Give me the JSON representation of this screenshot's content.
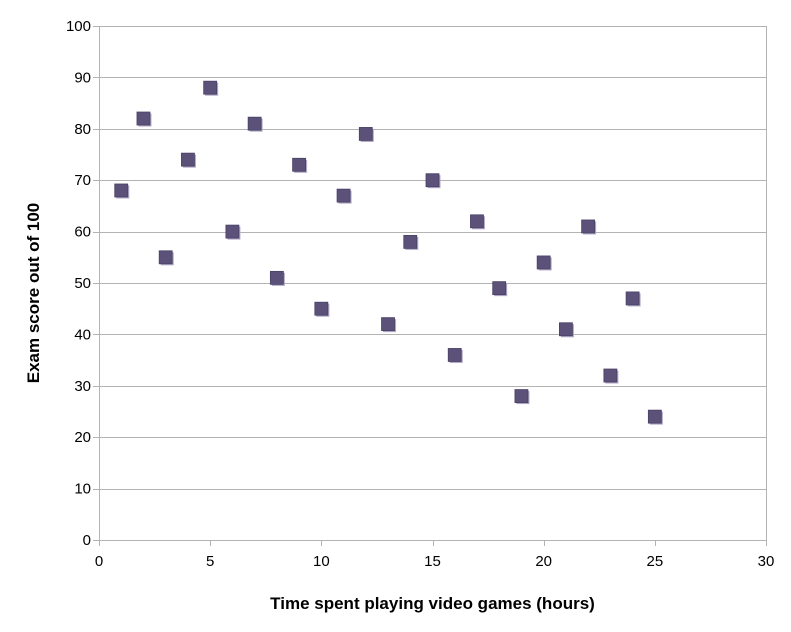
{
  "chart_data": {
    "type": "scatter",
    "title": "",
    "xlabel": "Time spent playing video games (hours)",
    "ylabel": "Exam score out of 100",
    "xlim": [
      0,
      30
    ],
    "ylim": [
      0,
      100
    ],
    "xticks": [
      0,
      5,
      10,
      15,
      20,
      25,
      30
    ],
    "yticks": [
      0,
      10,
      20,
      30,
      40,
      50,
      60,
      70,
      80,
      90,
      100
    ],
    "grid": "horizontal",
    "legend": "none",
    "marker": "square",
    "color": "#5b5179",
    "gridColor": "#b3b3b3",
    "points": [
      {
        "x": 1,
        "y": 68
      },
      {
        "x": 2,
        "y": 82
      },
      {
        "x": 3,
        "y": 55
      },
      {
        "x": 4,
        "y": 74
      },
      {
        "x": 5,
        "y": 88
      },
      {
        "x": 6,
        "y": 60
      },
      {
        "x": 7,
        "y": 81
      },
      {
        "x": 8,
        "y": 51
      },
      {
        "x": 9,
        "y": 73
      },
      {
        "x": 10,
        "y": 45
      },
      {
        "x": 11,
        "y": 67
      },
      {
        "x": 12,
        "y": 79
      },
      {
        "x": 13,
        "y": 42
      },
      {
        "x": 14,
        "y": 58
      },
      {
        "x": 15,
        "y": 70
      },
      {
        "x": 16,
        "y": 36
      },
      {
        "x": 17,
        "y": 62
      },
      {
        "x": 18,
        "y": 49
      },
      {
        "x": 19,
        "y": 28
      },
      {
        "x": 20,
        "y": 54
      },
      {
        "x": 21,
        "y": 41
      },
      {
        "x": 22,
        "y": 61
      },
      {
        "x": 23,
        "y": 32
      },
      {
        "x": 24,
        "y": 47
      },
      {
        "x": 25,
        "y": 24
      }
    ]
  }
}
